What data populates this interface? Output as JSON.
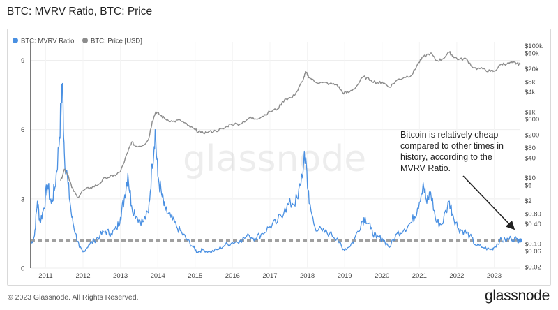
{
  "header": {
    "title": "BTC: MVRV Ratio, BTC: Price"
  },
  "footer": {
    "copyright": "© 2023 Glassnode. All Rights Reserved.",
    "brand": "glassnode"
  },
  "watermark": "glassnode",
  "colors": {
    "mvrv": "#4a90e2",
    "price": "#8c8c8c",
    "threshold": "#a0a0a0"
  },
  "chart_data": {
    "type": "line",
    "title": "BTC: MVRV Ratio, BTC: Price",
    "legend": {
      "placement": "top-left",
      "entries": [
        "BTC: MVRV Ratio",
        "BTC: Price [USD]"
      ]
    },
    "x_ticks": [
      "2011",
      "2012",
      "2013",
      "2014",
      "2015",
      "2016",
      "2017",
      "2018",
      "2019",
      "2020",
      "2021",
      "2022",
      "2023"
    ],
    "xlim": [
      2010.6,
      2023.7
    ],
    "left_axis": {
      "ticks": [
        0,
        3,
        6,
        9
      ],
      "range": [
        0,
        9.8
      ]
    },
    "right_axis": {
      "scale": "log",
      "range": [
        0.018,
        130000
      ],
      "ticks": [
        {
          "value": 100000,
          "label": "$100k"
        },
        {
          "value": 60000,
          "label": "$60k"
        },
        {
          "value": 20000,
          "label": "$20k"
        },
        {
          "value": 8000,
          "label": "$8k"
        },
        {
          "value": 4000,
          "label": "$4k"
        },
        {
          "value": 1000,
          "label": "$1k"
        },
        {
          "value": 600,
          "label": "$600"
        },
        {
          "value": 200,
          "label": "$200"
        },
        {
          "value": 80,
          "label": "$80"
        },
        {
          "value": 40,
          "label": "$40"
        },
        {
          "value": 10,
          "label": "$10"
        },
        {
          "value": 6,
          "label": "$6"
        },
        {
          "value": 2,
          "label": "$2"
        },
        {
          "value": 0.8,
          "label": "$0.80"
        },
        {
          "value": 0.4,
          "label": "$0.40"
        },
        {
          "value": 0.1,
          "label": "$0.10"
        },
        {
          "value": 0.06,
          "label": "$0.06"
        },
        {
          "value": 0.02,
          "label": "$0.02"
        }
      ]
    },
    "threshold_line": {
      "value": 1.2
    },
    "series": [
      {
        "name": "BTC: MVRV Ratio",
        "axis": "left",
        "points": [
          [
            2010.6,
            1.0
          ],
          [
            2010.7,
            1.4
          ],
          [
            2010.78,
            2.9
          ],
          [
            2010.85,
            2.0
          ],
          [
            2010.95,
            2.6
          ],
          [
            2011.05,
            3.6
          ],
          [
            2011.15,
            2.8
          ],
          [
            2011.25,
            3.5
          ],
          [
            2011.35,
            5.2
          ],
          [
            2011.42,
            7.2
          ],
          [
            2011.45,
            8.0
          ],
          [
            2011.5,
            5.0
          ],
          [
            2011.6,
            3.6
          ],
          [
            2011.7,
            2.2
          ],
          [
            2011.8,
            1.5
          ],
          [
            2011.9,
            0.9
          ],
          [
            2012.0,
            0.7
          ],
          [
            2012.15,
            1.0
          ],
          [
            2012.3,
            1.2
          ],
          [
            2012.45,
            1.4
          ],
          [
            2012.6,
            1.6
          ],
          [
            2012.75,
            1.5
          ],
          [
            2012.9,
            1.7
          ],
          [
            2013.0,
            2.2
          ],
          [
            2013.1,
            3.0
          ],
          [
            2013.2,
            4.1
          ],
          [
            2013.3,
            2.7
          ],
          [
            2013.45,
            2.2
          ],
          [
            2013.6,
            2.0
          ],
          [
            2013.75,
            2.4
          ],
          [
            2013.85,
            4.5
          ],
          [
            2013.93,
            6.0
          ],
          [
            2014.0,
            4.0
          ],
          [
            2014.1,
            3.2
          ],
          [
            2014.2,
            2.5
          ],
          [
            2014.35,
            2.2
          ],
          [
            2014.5,
            1.8
          ],
          [
            2014.65,
            1.5
          ],
          [
            2014.8,
            1.2
          ],
          [
            2014.95,
            0.9
          ],
          [
            2015.05,
            0.7
          ],
          [
            2015.2,
            0.8
          ],
          [
            2015.4,
            0.7
          ],
          [
            2015.6,
            0.8
          ],
          [
            2015.8,
            1.0
          ],
          [
            2016.0,
            1.1
          ],
          [
            2016.2,
            1.2
          ],
          [
            2016.45,
            1.4
          ],
          [
            2016.6,
            1.3
          ],
          [
            2016.8,
            1.5
          ],
          [
            2017.0,
            1.8
          ],
          [
            2017.2,
            2.0
          ],
          [
            2017.4,
            2.6
          ],
          [
            2017.6,
            2.8
          ],
          [
            2017.75,
            3.0
          ],
          [
            2017.9,
            4.5
          ],
          [
            2017.96,
            4.8
          ],
          [
            2018.05,
            2.8
          ],
          [
            2018.2,
            1.8
          ],
          [
            2018.4,
            1.6
          ],
          [
            2018.6,
            1.5
          ],
          [
            2018.8,
            1.3
          ],
          [
            2018.95,
            0.8
          ],
          [
            2019.1,
            0.9
          ],
          [
            2019.25,
            1.2
          ],
          [
            2019.45,
            2.0
          ],
          [
            2019.55,
            2.2
          ],
          [
            2019.7,
            1.7
          ],
          [
            2019.85,
            1.3
          ],
          [
            2020.0,
            1.3
          ],
          [
            2020.2,
            0.9
          ],
          [
            2020.4,
            1.5
          ],
          [
            2020.6,
            1.7
          ],
          [
            2020.8,
            2.0
          ],
          [
            2020.95,
            2.6
          ],
          [
            2021.1,
            3.7
          ],
          [
            2021.2,
            2.8
          ],
          [
            2021.3,
            3.3
          ],
          [
            2021.45,
            2.0
          ],
          [
            2021.6,
            1.9
          ],
          [
            2021.8,
            2.9
          ],
          [
            2021.9,
            2.3
          ],
          [
            2022.05,
            1.7
          ],
          [
            2022.2,
            1.6
          ],
          [
            2022.35,
            1.4
          ],
          [
            2022.5,
            1.0
          ],
          [
            2022.7,
            0.9
          ],
          [
            2022.9,
            0.8
          ],
          [
            2023.0,
            0.9
          ],
          [
            2023.15,
            1.2
          ],
          [
            2023.3,
            1.2
          ],
          [
            2023.45,
            1.3
          ],
          [
            2023.6,
            1.25
          ],
          [
            2023.7,
            1.2
          ]
        ]
      },
      {
        "name": "BTC: Price [USD]",
        "axis": "right",
        "points": [
          [
            2011.4,
            8
          ],
          [
            2011.5,
            18
          ],
          [
            2011.6,
            12
          ],
          [
            2011.7,
            5
          ],
          [
            2011.85,
            2.5
          ],
          [
            2012.0,
            4
          ],
          [
            2012.2,
            5
          ],
          [
            2012.4,
            6
          ],
          [
            2012.6,
            10
          ],
          [
            2012.8,
            11
          ],
          [
            2013.0,
            15
          ],
          [
            2013.2,
            60
          ],
          [
            2013.3,
            120
          ],
          [
            2013.4,
            90
          ],
          [
            2013.6,
            95
          ],
          [
            2013.75,
            140
          ],
          [
            2013.85,
            500
          ],
          [
            2013.95,
            1000
          ],
          [
            2014.05,
            800
          ],
          [
            2014.2,
            600
          ],
          [
            2014.4,
            500
          ],
          [
            2014.6,
            550
          ],
          [
            2014.8,
            380
          ],
          [
            2015.0,
            280
          ],
          [
            2015.15,
            230
          ],
          [
            2015.35,
            240
          ],
          [
            2015.55,
            260
          ],
          [
            2015.75,
            300
          ],
          [
            2015.95,
            420
          ],
          [
            2016.2,
            420
          ],
          [
            2016.45,
            650
          ],
          [
            2016.6,
            600
          ],
          [
            2016.8,
            720
          ],
          [
            2017.0,
            1000
          ],
          [
            2017.2,
            1200
          ],
          [
            2017.4,
            2400
          ],
          [
            2017.6,
            2700
          ],
          [
            2017.75,
            4500
          ],
          [
            2017.9,
            10000
          ],
          [
            2017.96,
            16000
          ],
          [
            2018.05,
            11000
          ],
          [
            2018.2,
            8000
          ],
          [
            2018.4,
            7500
          ],
          [
            2018.6,
            7000
          ],
          [
            2018.8,
            6400
          ],
          [
            2018.95,
            3700
          ],
          [
            2019.1,
            3800
          ],
          [
            2019.3,
            5500
          ],
          [
            2019.5,
            11500
          ],
          [
            2019.7,
            9000
          ],
          [
            2019.9,
            7300
          ],
          [
            2020.0,
            8000
          ],
          [
            2020.2,
            5500
          ],
          [
            2020.4,
            9000
          ],
          [
            2020.6,
            11000
          ],
          [
            2020.8,
            13000
          ],
          [
            2020.95,
            27000
          ],
          [
            2021.1,
            45000
          ],
          [
            2021.3,
            60000
          ],
          [
            2021.45,
            35000
          ],
          [
            2021.6,
            38000
          ],
          [
            2021.8,
            63000
          ],
          [
            2021.9,
            48000
          ],
          [
            2022.05,
            38000
          ],
          [
            2022.25,
            40000
          ],
          [
            2022.45,
            21000
          ],
          [
            2022.7,
            19500
          ],
          [
            2022.9,
            16500
          ],
          [
            2023.0,
            16800
          ],
          [
            2023.2,
            28000
          ],
          [
            2023.35,
            28500
          ],
          [
            2023.5,
            30000
          ],
          [
            2023.6,
            29000
          ],
          [
            2023.7,
            27000
          ]
        ]
      }
    ],
    "annotation": {
      "lines": [
        "Bitcoin is relatively cheap",
        "compared to other times in",
        "history, according to the",
        "MVRV Ratio."
      ]
    }
  }
}
